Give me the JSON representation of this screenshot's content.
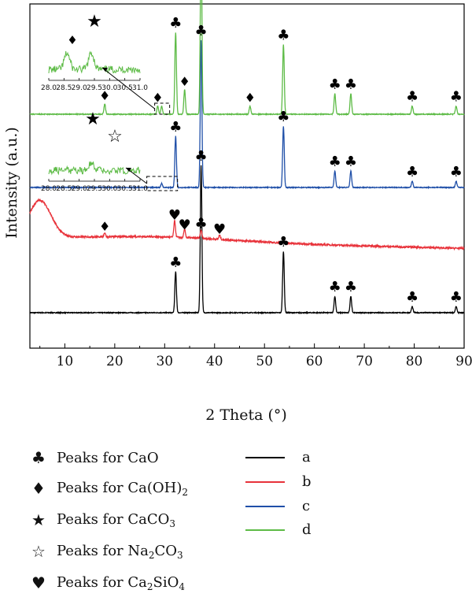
{
  "chart_data": {
    "type": "line",
    "xlabel": "2 Theta (°)",
    "ylabel": "Intensity (a.u.)",
    "xlim": [
      3,
      90
    ],
    "xticks": [
      "10",
      "20",
      "30",
      "40",
      "50",
      "60",
      "70",
      "80",
      "90"
    ],
    "grid": false,
    "series": [
      {
        "name": "a",
        "color": "#000000",
        "peaks": [
          [
            32.2,
            0.2
          ],
          [
            37.3,
            0.72
          ],
          [
            53.8,
            0.3
          ],
          [
            64.1,
            0.08
          ],
          [
            67.3,
            0.08
          ],
          [
            79.6,
            0.03
          ],
          [
            88.4,
            0.03
          ]
        ]
      },
      {
        "name": "b",
        "color": "#e8323a",
        "hump": {
          "center": 5.0,
          "height": 0.18
        },
        "peaks": [
          [
            18.0,
            0.02
          ],
          [
            32.0,
            0.08
          ],
          [
            34.0,
            0.04
          ],
          [
            37.3,
            0.04
          ],
          [
            41.0,
            0.02
          ]
        ]
      },
      {
        "name": "c",
        "color": "#1f4fa8",
        "peaks": [
          [
            29.4,
            0.02
          ],
          [
            32.2,
            0.25
          ],
          [
            37.3,
            0.72
          ],
          [
            53.8,
            0.3
          ],
          [
            64.1,
            0.08
          ],
          [
            67.3,
            0.08
          ],
          [
            79.6,
            0.03
          ],
          [
            88.4,
            0.03
          ]
        ]
      },
      {
        "name": "d",
        "color": "#5dbb46",
        "peaks": [
          [
            18.0,
            0.05
          ],
          [
            28.6,
            0.04
          ],
          [
            29.4,
            0.04
          ],
          [
            32.2,
            0.4
          ],
          [
            34.0,
            0.12
          ],
          [
            37.3,
            0.86
          ],
          [
            47.1,
            0.04
          ],
          [
            53.8,
            0.34
          ],
          [
            64.1,
            0.1
          ],
          [
            67.3,
            0.1
          ],
          [
            79.6,
            0.04
          ],
          [
            88.4,
            0.04
          ]
        ]
      }
    ],
    "insets": [
      {
        "series": "d",
        "xlim": [
          28.0,
          31.0
        ],
        "ticks": [
          "28.0",
          "28.5",
          "29.0",
          "29.5",
          "30.0",
          "30.5",
          "31.0"
        ]
      },
      {
        "series": "c",
        "xlim": [
          28.0,
          31.0
        ],
        "ticks": [
          "28.0",
          "28.5",
          "29.0",
          "29.5",
          "30.0",
          "30.5",
          "31.0"
        ]
      }
    ],
    "legend_markers": [
      {
        "symbol": "♣",
        "icon": "club-icon",
        "label": "Peaks for CaO"
      },
      {
        "symbol": "♦",
        "icon": "diamond-icon",
        "label": "Peaks for Ca(OH)2"
      },
      {
        "symbol": "★",
        "icon": "filled-star-icon",
        "label": "Peaks for CaCO3"
      },
      {
        "symbol": "☆",
        "icon": "open-star-icon",
        "label": "Peaks for Na2CO3"
      },
      {
        "symbol": "♥",
        "icon": "heart-icon",
        "label": "Peaks for Ca2SiO4"
      }
    ]
  }
}
